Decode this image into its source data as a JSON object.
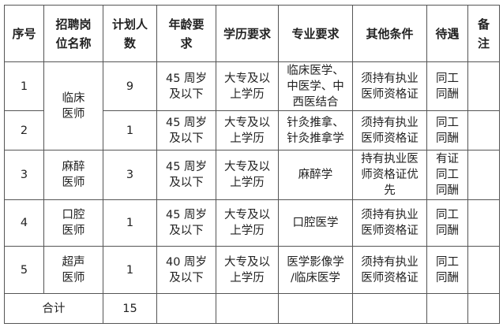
{
  "headers": [
    "序号",
    "招聘岗\n位名称",
    "计划人\n数",
    "年龄要\n求",
    "学历要求",
    "专业要求",
    "其他条件",
    "待遇",
    "备\n注"
  ],
  "rows": [
    {
      "no": "1",
      "position": "临床\n医师",
      "count": "9",
      "age": "45 周岁\n及以下",
      "education": "大专及以\n上学历",
      "major": "临床医学、\n中医学、中\n西医结合",
      "other": "须持有执业\n医师资格证",
      "pay": "同工\n同酬",
      "note": ""
    },
    {
      "no": "2",
      "count": "1",
      "age": "45 周岁\n及以下",
      "education": "大专及以\n上学历",
      "major": "针灸推拿、\n针灸推拿学",
      "other": "须持有执业\n医师资格证",
      "pay": "同工\n同酬",
      "note": ""
    },
    {
      "no": "3",
      "position": "麻醉\n医师",
      "count": "3",
      "age": "45 周岁\n及以下",
      "education": "大专及以\n上学历",
      "major": "麻醉学",
      "other": "持有执业医\n师资格证优\n先",
      "pay": "有证\n同工\n同酬",
      "note": ""
    },
    {
      "no": "4",
      "position": "口腔\n医师",
      "count": "1",
      "age": "45 周岁\n及以下",
      "education": "大专及以\n上学历",
      "major": "口腔医学",
      "other": "须持有执业\n医师资格证",
      "pay": "同工\n同酬",
      "note": ""
    },
    {
      "no": "5",
      "position": "超声\n医师",
      "count": "1",
      "age": "40 周岁\n及以下",
      "education": "大专及以\n上学历",
      "major": "医学影像学\n/临床医学",
      "other": "须持有执业\n医师资格证",
      "pay": "同工\n同酬",
      "note": ""
    }
  ],
  "total": {
    "label": "合计",
    "count": "15"
  }
}
